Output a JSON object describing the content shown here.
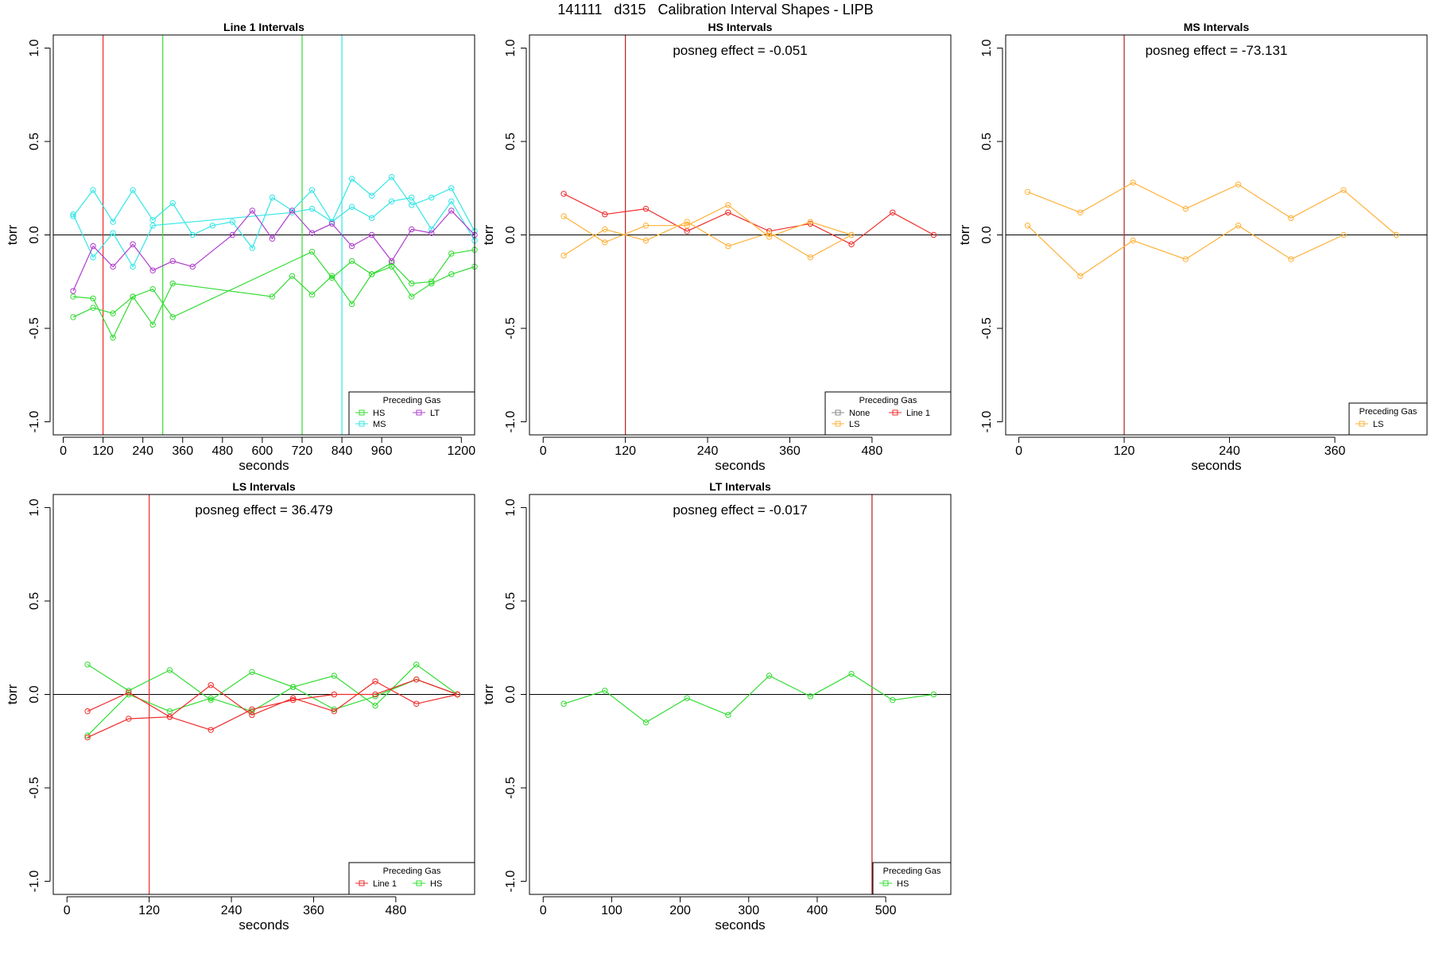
{
  "figure": {
    "title": "141111   d315   Calibration Interval Shapes - LIPB"
  },
  "colors": {
    "HS": "#32dc32",
    "MS": "#34e6e6",
    "LT": "#b03ecf",
    "LS": "#ffb13a",
    "Line 1": "#ef2a2a",
    "None": "#8a8a8a",
    "vline_red": "#b22222",
    "zero": "#000000"
  },
  "chart_data": [
    {
      "type": "line",
      "title": "Line 1 Intervals",
      "xlabel": "seconds",
      "ylabel": "torr",
      "xlim": [
        -30,
        1240
      ],
      "ylim": [
        -1.07,
        1.07
      ],
      "xticks": [
        0,
        120,
        240,
        360,
        480,
        600,
        720,
        840,
        960,
        1200
      ],
      "yticks": [
        -1.0,
        -0.5,
        0.0,
        0.5,
        1.0
      ],
      "grid": false,
      "vlines": [
        {
          "x": 120,
          "color": "Line 1"
        },
        {
          "x": 300,
          "color": "HS"
        },
        {
          "x": 720,
          "color": "HS"
        },
        {
          "x": 840,
          "color": "MS"
        }
      ],
      "legend": {
        "title": "Preceding Gas",
        "position": "bottom-right",
        "rows": [
          [
            {
              "label": "HS",
              "color": "HS"
            },
            {
              "label": "LT",
              "color": "LT"
            }
          ],
          [
            {
              "label": "MS",
              "color": "MS"
            }
          ]
        ]
      },
      "series": [
        {
          "name": "HS",
          "color": "HS",
          "x": [
            30,
            90,
            150,
            210,
            270,
            330,
            630,
            690,
            750,
            810,
            870,
            930,
            990,
            1050,
            1110,
            1170,
            1240
          ],
          "y": [
            -0.44,
            -0.39,
            -0.42,
            -0.33,
            -0.48,
            -0.26,
            -0.33,
            -0.22,
            -0.32,
            -0.22,
            -0.37,
            -0.21,
            -0.17,
            -0.33,
            -0.26,
            -0.21,
            -0.17
          ]
        },
        {
          "name": "HS",
          "color": "HS",
          "x": [
            30,
            90,
            150,
            210,
            270,
            330,
            750,
            810,
            870,
            930,
            990,
            1050,
            1110,
            1170,
            1240
          ],
          "y": [
            -0.33,
            -0.34,
            -0.55,
            -0.33,
            -0.29,
            -0.44,
            -0.09,
            -0.23,
            -0.14,
            -0.21,
            -0.15,
            -0.26,
            -0.25,
            -0.1,
            -0.08
          ]
        },
        {
          "name": "MS",
          "color": "MS",
          "x": [
            30,
            90,
            150,
            210,
            270,
            330,
            390,
            450,
            510,
            570,
            630,
            690,
            750,
            810,
            870,
            930,
            990,
            1050,
            1110,
            1170,
            1240
          ],
          "y": [
            0.1,
            0.24,
            0.07,
            0.24,
            0.08,
            0.17,
            0.0,
            0.05,
            0.07,
            -0.07,
            0.2,
            0.13,
            0.24,
            0.07,
            0.3,
            0.21,
            0.31,
            0.16,
            0.2,
            0.25,
            0.02
          ]
        },
        {
          "name": "MS",
          "color": "MS",
          "x": [
            30,
            90,
            150,
            210,
            270,
            690,
            750,
            810,
            870,
            930,
            990,
            1050,
            1110,
            1170,
            1240
          ],
          "y": [
            0.11,
            -0.12,
            0.01,
            -0.17,
            0.05,
            0.12,
            0.14,
            0.07,
            0.15,
            0.09,
            0.18,
            0.2,
            0.03,
            0.18,
            -0.03
          ]
        },
        {
          "name": "LT",
          "color": "LT",
          "x": [
            30,
            90,
            150,
            210,
            270,
            330,
            390,
            510,
            570,
            630,
            690,
            750,
            810,
            870,
            930,
            990,
            1050,
            1110,
            1170,
            1240
          ],
          "y": [
            -0.3,
            -0.06,
            -0.17,
            -0.05,
            -0.19,
            -0.14,
            -0.17,
            0.0,
            0.13,
            -0.02,
            0.13,
            0.01,
            0.06,
            -0.06,
            0.0,
            -0.14,
            0.03,
            0.01,
            0.13,
            0.0
          ]
        }
      ]
    },
    {
      "type": "line",
      "title": "HS Intervals",
      "annotation": "posneg effect = -0.051",
      "xlabel": "seconds",
      "ylabel": "torr",
      "xlim": [
        -20,
        595
      ],
      "ylim": [
        -1.07,
        1.07
      ],
      "xticks": [
        0,
        120,
        240,
        360,
        480
      ],
      "yticks": [
        -1.0,
        -0.5,
        0.0,
        0.5,
        1.0
      ],
      "grid": false,
      "vlines": [
        {
          "x": 120,
          "color": "vline_red"
        }
      ],
      "legend": {
        "title": "Preceding Gas",
        "position": "bottom-right",
        "rows": [
          [
            {
              "label": "None",
              "color": "None"
            },
            {
              "label": "Line 1",
              "color": "Line 1"
            }
          ],
          [
            {
              "label": "LS",
              "color": "LS"
            }
          ]
        ]
      },
      "series": [
        {
          "name": "Line 1",
          "color": "Line 1",
          "x": [
            30,
            90,
            150,
            210,
            270,
            330,
            390,
            450,
            510,
            570
          ],
          "y": [
            0.22,
            0.11,
            0.14,
            0.02,
            0.12,
            0.02,
            0.06,
            -0.05,
            0.12,
            0.0
          ]
        },
        {
          "name": "LS",
          "color": "LS",
          "x": [
            30,
            90,
            150,
            210,
            270,
            330,
            390,
            450
          ],
          "y": [
            0.1,
            -0.04,
            0.05,
            0.05,
            0.16,
            -0.01,
            0.07,
            0.0
          ]
        },
        {
          "name": "LS",
          "color": "LS",
          "x": [
            30,
            90,
            150,
            210,
            270,
            330,
            390,
            450
          ],
          "y": [
            -0.11,
            0.03,
            -0.03,
            0.07,
            -0.06,
            0.01,
            -0.12,
            0.0
          ]
        }
      ]
    },
    {
      "type": "line",
      "title": "MS Intervals",
      "annotation": "posneg effect = -73.131",
      "xlabel": "seconds",
      "ylabel": "torr",
      "xlim": [
        -15,
        465
      ],
      "ylim": [
        -1.07,
        1.07
      ],
      "xticks": [
        0,
        120,
        240,
        360
      ],
      "yticks": [
        -1.0,
        -0.5,
        0.0,
        0.5,
        1.0
      ],
      "grid": false,
      "vlines": [
        {
          "x": 120,
          "color": "vline_red"
        }
      ],
      "legend": {
        "title": "Preceding Gas",
        "position": "bottom-right",
        "rows": [
          [
            {
              "label": "LS",
              "color": "LS"
            }
          ]
        ]
      },
      "series": [
        {
          "name": "LS",
          "color": "LS",
          "x": [
            10,
            70,
            130,
            190,
            250,
            310,
            370,
            430
          ],
          "y": [
            0.23,
            0.12,
            0.28,
            0.14,
            0.27,
            0.09,
            0.24,
            0.0
          ]
        },
        {
          "name": "LS",
          "color": "LS",
          "x": [
            10,
            70,
            130,
            190,
            250,
            310,
            370
          ],
          "y": [
            0.05,
            -0.22,
            -0.03,
            -0.13,
            0.05,
            -0.13,
            0.0
          ]
        }
      ]
    },
    {
      "type": "line",
      "title": "LS Intervals",
      "annotation": "posneg effect = 36.479",
      "xlabel": "seconds",
      "ylabel": "torr",
      "xlim": [
        -20,
        595
      ],
      "ylim": [
        -1.07,
        1.07
      ],
      "xticks": [
        0,
        120,
        240,
        360,
        480
      ],
      "yticks": [
        -1.0,
        -0.5,
        0.0,
        0.5,
        1.0
      ],
      "grid": false,
      "vlines": [
        {
          "x": 120,
          "color": "Line 1"
        }
      ],
      "legend": {
        "title": "Preceding Gas",
        "position": "bottom-right",
        "rows": [
          [
            {
              "label": "Line 1",
              "color": "Line 1"
            },
            {
              "label": "HS",
              "color": "HS"
            }
          ]
        ]
      },
      "series": [
        {
          "name": "HS",
          "color": "HS",
          "x": [
            30,
            90,
            150,
            210,
            270,
            330,
            390,
            450,
            510,
            570
          ],
          "y": [
            0.16,
            0.02,
            0.13,
            -0.03,
            0.12,
            0.04,
            0.1,
            -0.06,
            0.16,
            0.0
          ]
        },
        {
          "name": "HS",
          "color": "HS",
          "x": [
            30,
            90,
            150,
            210,
            270,
            330,
            390,
            450,
            510,
            570
          ],
          "y": [
            -0.22,
            0.0,
            -0.09,
            -0.02,
            -0.09,
            0.04,
            -0.08,
            -0.01,
            0.08,
            0.0
          ]
        },
        {
          "name": "Line 1",
          "color": "Line 1",
          "x": [
            30,
            90,
            150,
            210,
            270,
            330,
            390,
            450,
            510,
            570
          ],
          "y": [
            -0.09,
            0.01,
            -0.12,
            0.05,
            -0.11,
            -0.02,
            -0.09,
            0.07,
            -0.05,
            0.0
          ]
        },
        {
          "name": "Line 1",
          "color": "Line 1",
          "x": [
            30,
            90,
            150,
            210,
            270,
            330,
            390,
            450,
            510,
            570
          ],
          "y": [
            -0.23,
            -0.13,
            -0.12,
            -0.19,
            -0.08,
            -0.03,
            0.0,
            0.0,
            0.08,
            0.0
          ]
        }
      ]
    },
    {
      "type": "line",
      "title": "LT Intervals",
      "annotation": "posneg effect = -0.017",
      "xlabel": "seconds",
      "ylabel": "torr",
      "xlim": [
        -20,
        595
      ],
      "ylim": [
        -1.07,
        1.07
      ],
      "xticks": [
        0,
        100,
        200,
        300,
        400,
        500
      ],
      "yticks": [
        -1.0,
        -0.5,
        0.0,
        0.5,
        1.0
      ],
      "grid": false,
      "vlines": [
        {
          "x": 480,
          "color": "vline_red"
        }
      ],
      "legend": {
        "title": "Preceding Gas",
        "position": "bottom-right",
        "rows": [
          [
            {
              "label": "HS",
              "color": "HS"
            }
          ]
        ]
      },
      "series": [
        {
          "name": "HS",
          "color": "HS",
          "x": [
            30,
            90,
            150,
            210,
            270,
            330,
            390,
            450,
            510,
            570
          ],
          "y": [
            -0.05,
            0.02,
            -0.15,
            -0.02,
            -0.11,
            0.1,
            -0.01,
            0.11,
            -0.03,
            0.0
          ]
        }
      ]
    }
  ]
}
